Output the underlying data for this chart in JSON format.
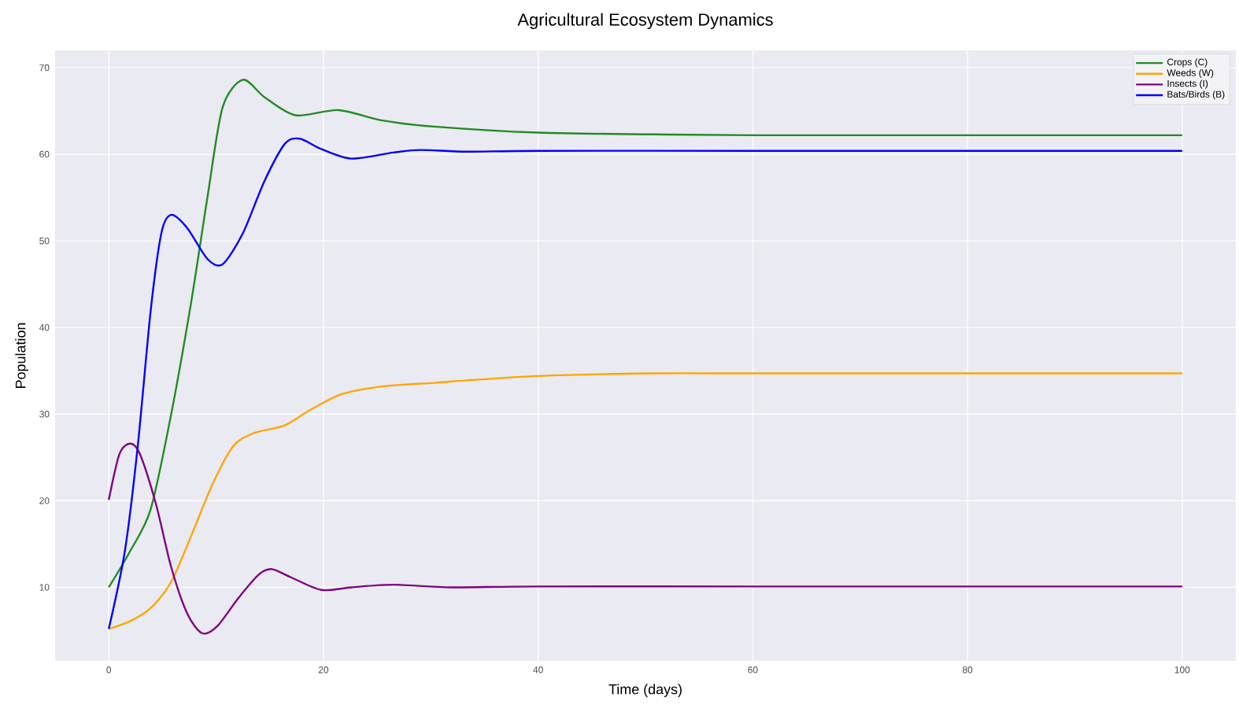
{
  "chart_data": {
    "type": "line",
    "title": "Agricultural Ecosystem Dynamics",
    "xlabel": "Time (days)",
    "ylabel": "Population",
    "xlim": [
      -5,
      105
    ],
    "ylim": [
      1.5,
      72
    ],
    "xticks": [
      0,
      20,
      40,
      60,
      80,
      100
    ],
    "yticks": [
      10,
      20,
      30,
      40,
      50,
      60,
      70
    ],
    "grid": true,
    "legend": "top right",
    "line_style": "solid",
    "marker": "none",
    "series": [
      {
        "name": "Crops (C)",
        "color": "#228b22",
        "x": [
          0,
          2,
          3.9,
          5.8,
          7.7,
          9.2,
          10.6,
          12.5,
          14.5,
          17.4,
          21.4,
          25.5,
          30.3,
          40,
          50.7,
          60,
          80,
          100
        ],
        "values": [
          10,
          14.2,
          19,
          29.9,
          43.1,
          55.1,
          65.4,
          68.6,
          66.6,
          64.5,
          65.1,
          63.9,
          63.2,
          62.5,
          62.3,
          62.2,
          62.2,
          62.2
        ]
      },
      {
        "name": "Weeds (W)",
        "color": "#ffa500",
        "x": [
          0,
          2,
          3.9,
          5.8,
          7.7,
          9.7,
          11.6,
          13.5,
          16.4,
          18.8,
          21.7,
          25.5,
          30.3,
          33.4,
          40,
          50.7,
          60,
          80,
          100
        ],
        "values": [
          5.2,
          6.1,
          7.6,
          10.6,
          16,
          22,
          26.3,
          27.8,
          28.7,
          30.5,
          32.3,
          33.2,
          33.6,
          33.9,
          34.4,
          34.7,
          34.7,
          34.7,
          34.7
        ]
      },
      {
        "name": "Insects (I)",
        "color": "#800080",
        "x": [
          0,
          1,
          2,
          2.9,
          4.4,
          5.8,
          7.3,
          8.7,
          10.1,
          12.1,
          14,
          15.2,
          16.9,
          19.8,
          22.6,
          26.5,
          31.9,
          40,
          60,
          80,
          100
        ],
        "values": [
          20.1,
          25.4,
          26.6,
          25.4,
          19.6,
          12.4,
          7,
          4.7,
          5.5,
          8.8,
          11.5,
          12.1,
          11.2,
          9.7,
          10,
          10.3,
          10,
          10.1,
          10.1,
          10.1,
          10.1
        ]
      },
      {
        "name": "Bats/Birds (B)",
        "color": "#0000ff",
        "x": [
          0,
          1.5,
          2.7,
          3.9,
          4.9,
          5.8,
          7.3,
          9.2,
          10.6,
          12.5,
          14.5,
          16.4,
          17.8,
          19.8,
          22.6,
          26.5,
          29,
          33.4,
          40,
          60,
          80,
          100
        ],
        "values": [
          5.2,
          14.2,
          26.3,
          41.9,
          50.9,
          53,
          51.5,
          47.9,
          47.3,
          50.9,
          56.9,
          61.2,
          61.8,
          60.6,
          59.5,
          60.2,
          60.5,
          60.3,
          60.4,
          60.4,
          60.4,
          60.4
        ]
      }
    ]
  }
}
